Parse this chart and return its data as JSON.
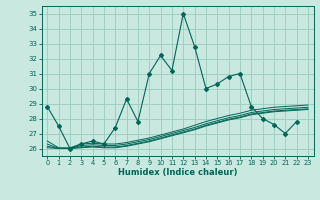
{
  "title": "",
  "xlabel": "Humidex (Indice chaleur)",
  "xlim": [
    -0.5,
    23.5
  ],
  "ylim": [
    25.5,
    35.5
  ],
  "yticks": [
    26,
    27,
    28,
    29,
    30,
    31,
    32,
    33,
    34,
    35
  ],
  "xticks": [
    0,
    1,
    2,
    3,
    4,
    5,
    6,
    7,
    8,
    9,
    10,
    11,
    12,
    13,
    14,
    15,
    16,
    17,
    18,
    19,
    20,
    21,
    22,
    23
  ],
  "background_color": "#c8e8e0",
  "grid_color": "#99ccbb",
  "line_color": "#006655",
  "spiky_series": [
    28.8,
    27.5,
    26.0,
    26.3,
    26.5,
    26.3,
    27.4,
    29.3,
    27.8,
    31.0,
    32.2,
    31.2,
    35.0,
    32.8,
    30.0,
    30.3,
    30.8,
    31.0,
    28.8,
    28.0,
    27.6,
    27.0,
    27.8,
    null
  ],
  "smooth_series": [
    [
      26.5,
      26.05,
      26.05,
      26.3,
      26.35,
      26.3,
      26.3,
      26.4,
      26.55,
      26.7,
      26.9,
      27.1,
      27.3,
      27.55,
      27.8,
      28.0,
      28.2,
      28.35,
      28.55,
      28.65,
      28.75,
      28.8,
      28.85,
      28.9
    ],
    [
      26.3,
      26.0,
      26.0,
      26.2,
      26.25,
      26.2,
      26.2,
      26.3,
      26.45,
      26.6,
      26.8,
      27.0,
      27.2,
      27.4,
      27.65,
      27.85,
      28.05,
      28.2,
      28.4,
      28.5,
      28.6,
      28.65,
      28.7,
      28.75
    ],
    [
      26.15,
      26.0,
      26.0,
      26.1,
      26.15,
      26.1,
      26.1,
      26.2,
      26.35,
      26.5,
      26.7,
      26.9,
      27.1,
      27.3,
      27.55,
      27.75,
      27.95,
      28.1,
      28.3,
      28.4,
      28.5,
      28.55,
      28.6,
      28.65
    ],
    [
      26.05,
      26.0,
      26.0,
      26.05,
      26.1,
      26.05,
      26.05,
      26.15,
      26.3,
      26.45,
      26.65,
      26.85,
      27.05,
      27.25,
      27.5,
      27.7,
      27.9,
      28.05,
      28.25,
      28.35,
      28.45,
      28.5,
      28.55,
      28.6
    ]
  ]
}
